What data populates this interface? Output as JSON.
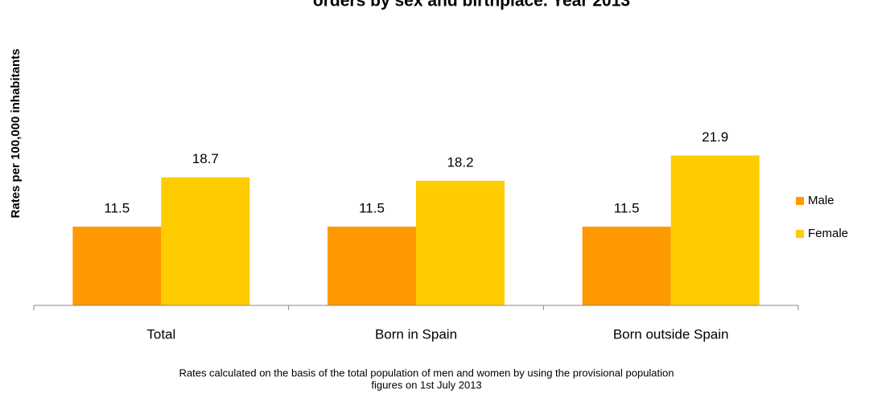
{
  "chart_data": {
    "type": "bar",
    "title": "orders by sex and birthplace. Year 2013",
    "y_label": "Rates per 100,000 inhabitants",
    "categories": [
      "Total",
      "Born in Spain",
      "Born outside Spain"
    ],
    "series": [
      {
        "name": "Male",
        "color": "#ff9900",
        "values": [
          11.5,
          11.5,
          11.5
        ]
      },
      {
        "name": "Female",
        "color": "#ffcc00",
        "values": [
          18.7,
          18.2,
          21.9
        ]
      }
    ],
    "ylim": [
      0,
      25
    ],
    "legend": "right",
    "footnote": [
      "Rates calculated on the basis of the total population of men and women by using the provisional population",
      "figures on 1st  July 2013"
    ]
  }
}
